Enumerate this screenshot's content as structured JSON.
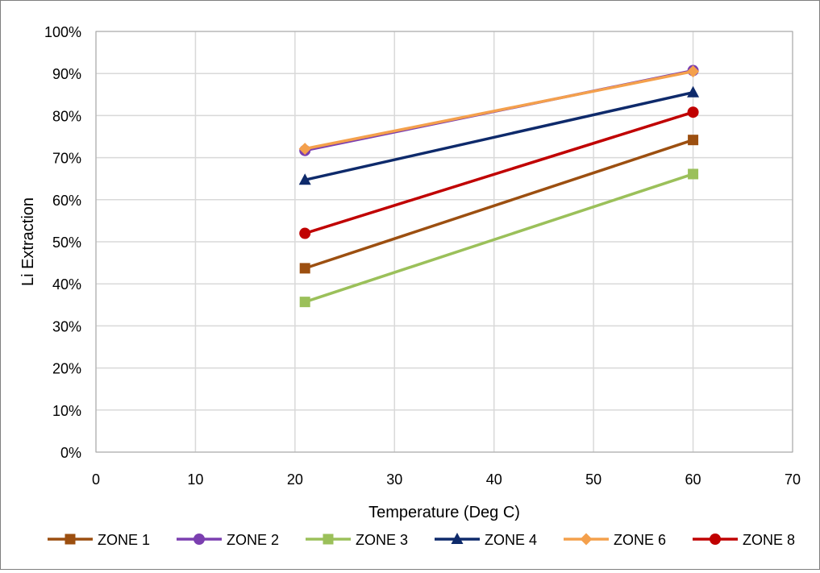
{
  "chart_data": {
    "type": "line",
    "title": "",
    "xlabel": "Temperature (Deg C)",
    "ylabel": "Li Extraction",
    "xlim": [
      0,
      70
    ],
    "ylim": [
      0,
      1
    ],
    "x_ticks": [
      "0",
      "10",
      "20",
      "30",
      "40",
      "50",
      "60",
      "70"
    ],
    "y_ticks": [
      "0%",
      "10%",
      "20%",
      "30%",
      "40%",
      "50%",
      "60%",
      "70%",
      "80%",
      "90%",
      "100%"
    ],
    "grid": true,
    "legend_position": "bottom",
    "series": [
      {
        "name": "ZONE 1",
        "color": "#9C4F10",
        "marker": "square",
        "x": [
          21,
          60
        ],
        "y": [
          0.437,
          0.742
        ]
      },
      {
        "name": "ZONE 2",
        "color": "#7B3FB0",
        "marker": "circle",
        "x": [
          21,
          60
        ],
        "y": [
          0.717,
          0.907
        ]
      },
      {
        "name": "ZONE 3",
        "color": "#9BC05A",
        "marker": "square",
        "x": [
          21,
          60
        ],
        "y": [
          0.357,
          0.661
        ]
      },
      {
        "name": "ZONE 4",
        "color": "#0E2A6B",
        "marker": "triangle",
        "x": [
          21,
          60
        ],
        "y": [
          0.647,
          0.855
        ]
      },
      {
        "name": "ZONE 6",
        "color": "#F4A04C",
        "marker": "diamond",
        "x": [
          21,
          60
        ],
        "y": [
          0.721,
          0.905
        ]
      },
      {
        "name": "ZONE 8",
        "color": "#C00000",
        "marker": "circle",
        "x": [
          21,
          60
        ],
        "y": [
          0.52,
          0.808
        ]
      }
    ]
  }
}
